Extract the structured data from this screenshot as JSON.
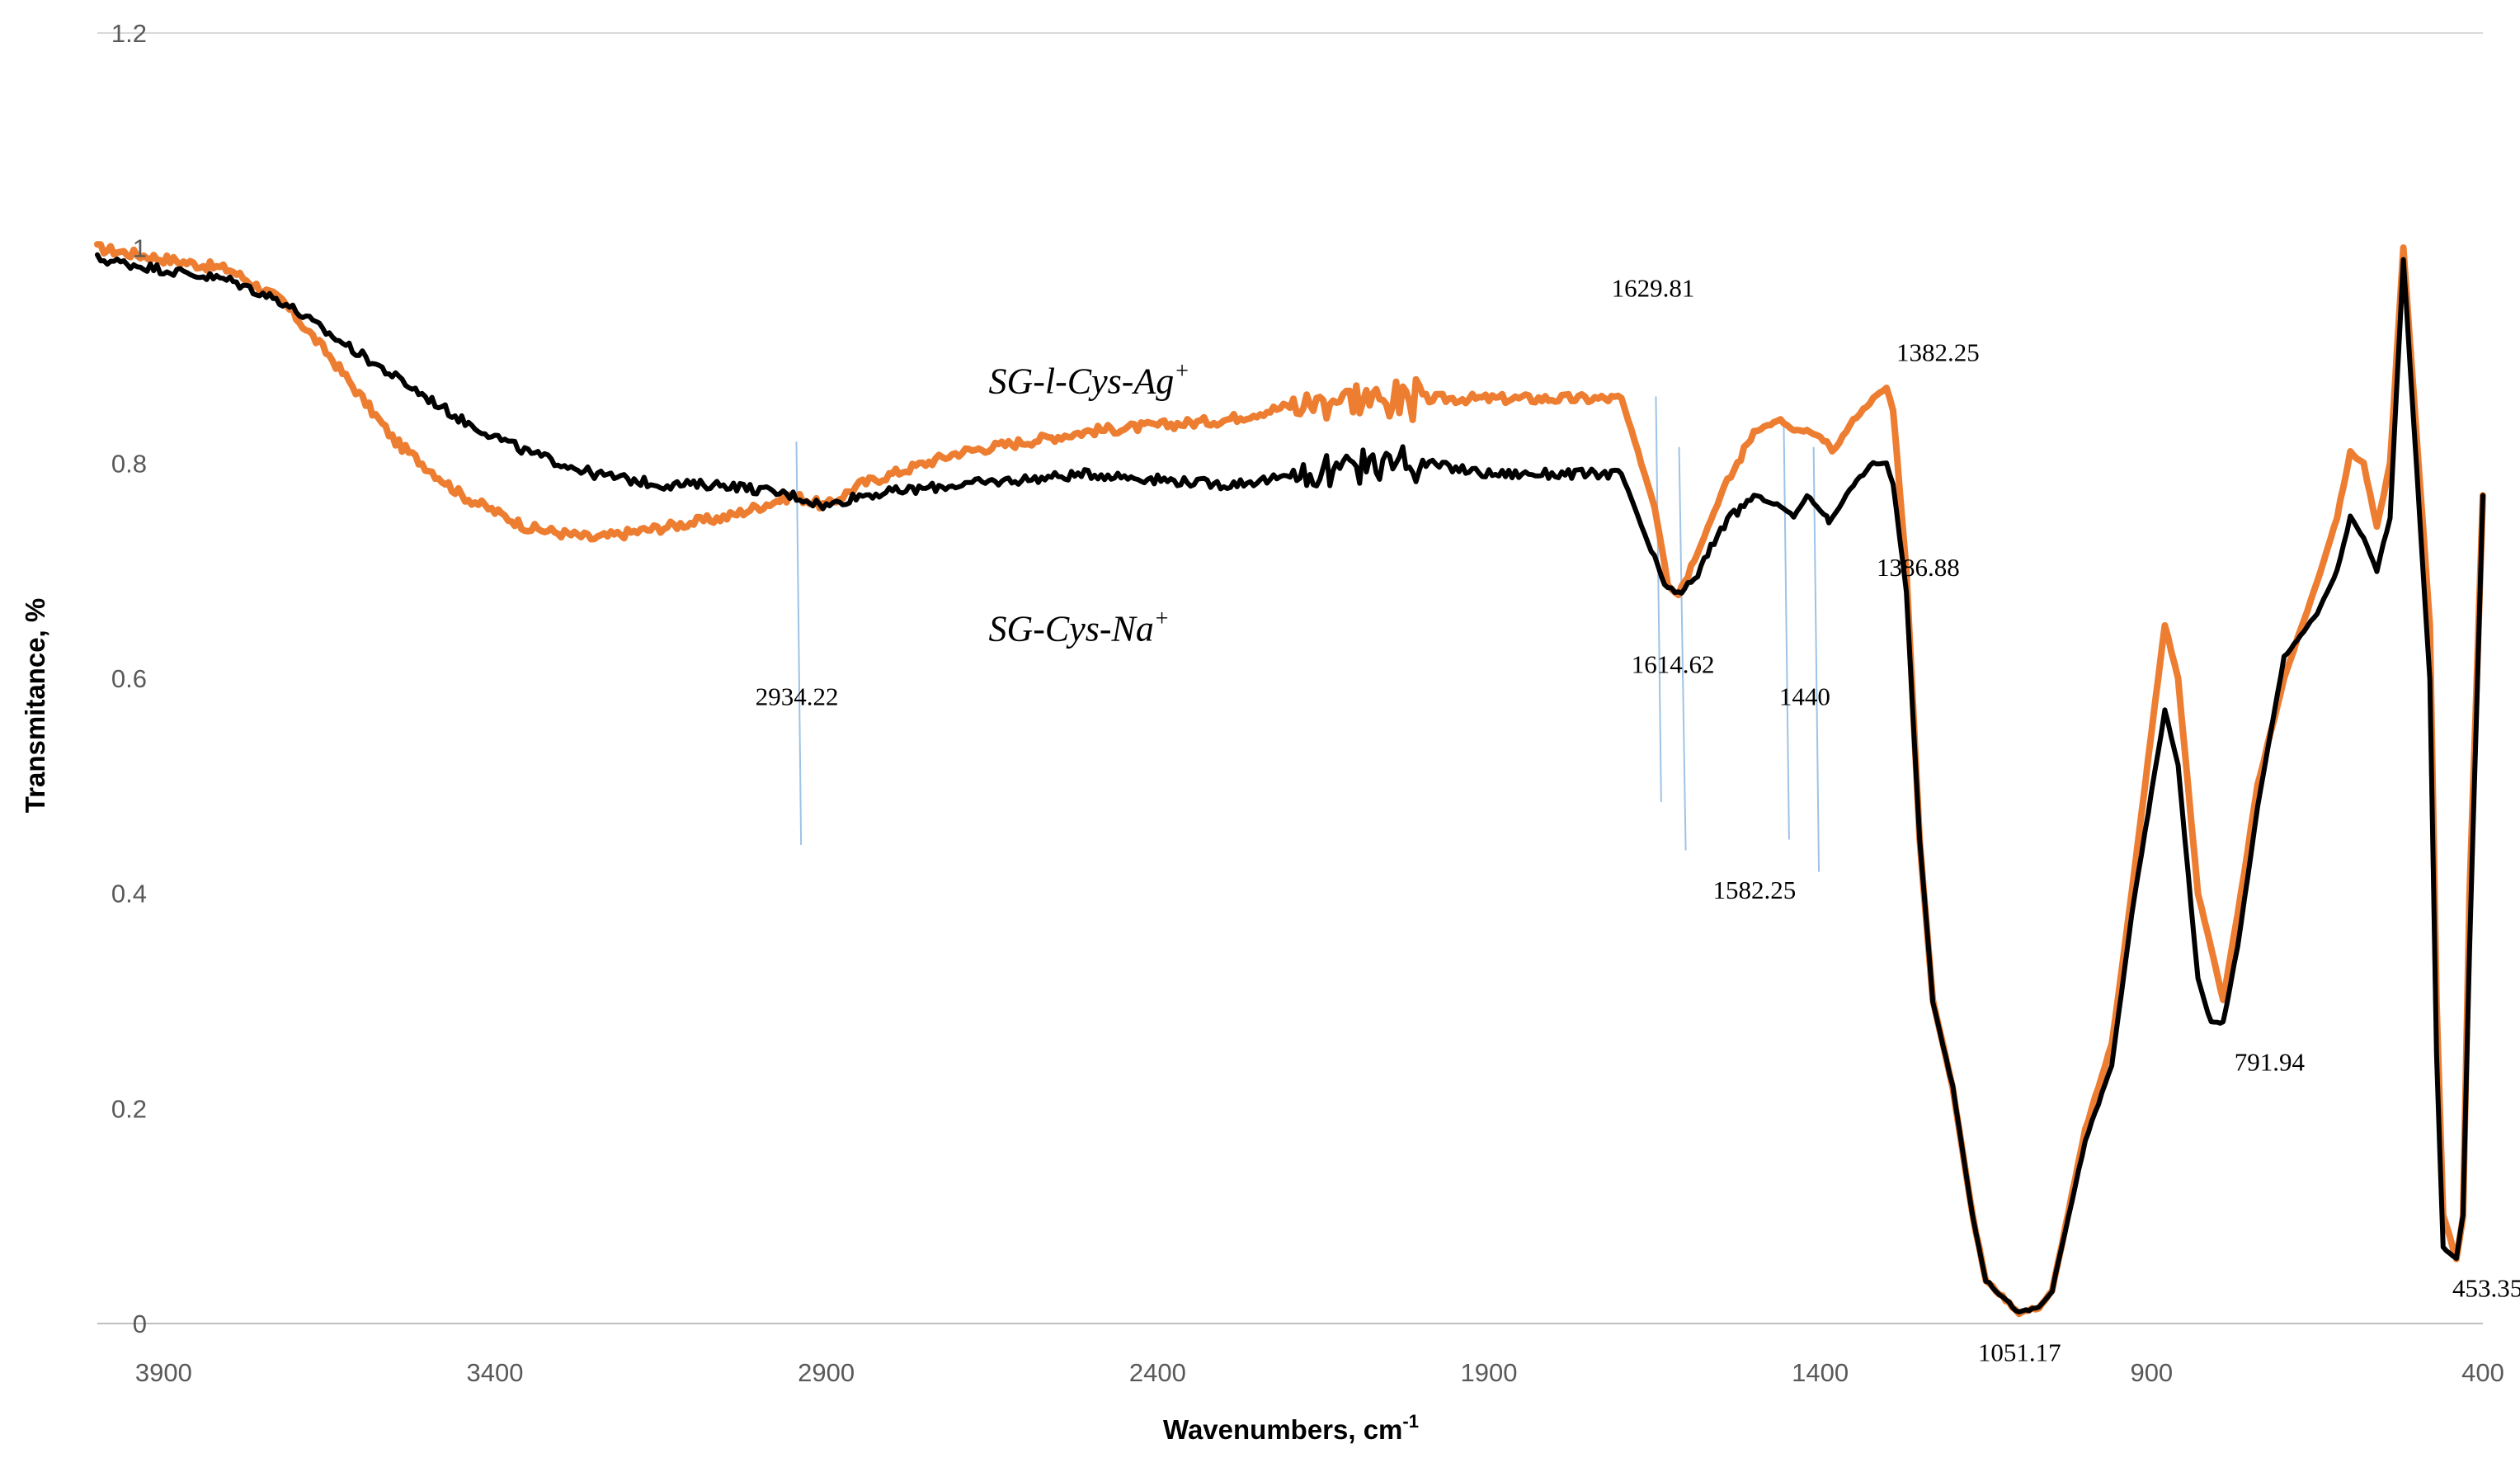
{
  "chart_data": {
    "type": "line",
    "title": "",
    "xlabel": "Wavenumbers, cm",
    "xlabel_superscript": "-1",
    "ylabel": "Transmitance, %",
    "xlim": [
      4000,
      400
    ],
    "ylim": [
      0,
      1.2
    ],
    "x_ticks": [
      "3900",
      "3400",
      "2900",
      "2400",
      "1900",
      "1400",
      "900",
      "400"
    ],
    "y_ticks": [
      "0",
      "0.2",
      "0.4",
      "0.6",
      "0.8",
      "1",
      "1.2"
    ],
    "grid": false,
    "colors": {
      "ag_series": "#ED7D31",
      "na_series": "#000000",
      "marker_lines": "#9DC3E6"
    },
    "series": [
      {
        "name": "SG-l-Cys-Ag",
        "name_sup": "+",
        "color": "#ED7D31",
        "x": [
          4000,
          3900,
          3800,
          3720,
          3650,
          3550,
          3450,
          3350,
          3250,
          3150,
          3050,
          2950,
          2900,
          2850,
          2700,
          2500,
          2300,
          2150,
          2100,
          2000,
          1900,
          1800,
          1700,
          1650,
          1630,
          1614,
          1590,
          1550,
          1500,
          1460,
          1440,
          1420,
          1390,
          1382,
          1350,
          1320,
          1300,
          1290,
          1270,
          1250,
          1230,
          1200,
          1170,
          1150,
          1100,
          1070,
          1050,
          1000,
          960,
          930,
          880,
          860,
          830,
          810,
          792,
          770,
          740,
          700,
          650,
          620,
          600,
          580,
          560,
          540,
          520,
          480,
          470,
          460,
          440,
          430,
          420,
          400
        ],
        "y": [
          1.0,
          0.99,
          0.98,
          0.95,
          0.9,
          0.82,
          0.77,
          0.74,
          0.73,
          0.74,
          0.75,
          0.77,
          0.76,
          0.78,
          0.81,
          0.83,
          0.84,
          0.86,
          0.86,
          0.86,
          0.86,
          0.86,
          0.86,
          0.76,
          0.69,
          0.68,
          0.71,
          0.77,
          0.83,
          0.84,
          0.83,
          0.83,
          0.82,
          0.81,
          0.84,
          0.86,
          0.87,
          0.85,
          0.7,
          0.45,
          0.3,
          0.22,
          0.1,
          0.04,
          0.01,
          0.015,
          0.03,
          0.18,
          0.26,
          0.4,
          0.65,
          0.6,
          0.4,
          0.35,
          0.3,
          0.38,
          0.5,
          0.6,
          0.69,
          0.75,
          0.81,
          0.8,
          0.74,
          0.8,
          1.0,
          0.65,
          0.3,
          0.1,
          0.06,
          0.1,
          0.4,
          0.77
        ]
      },
      {
        "name": "SG-Cys-Na",
        "name_sup": "+",
        "color": "#000000",
        "x": [
          4000,
          3900,
          3800,
          3720,
          3650,
          3550,
          3450,
          3350,
          3250,
          3150,
          3050,
          2950,
          2900,
          2850,
          2700,
          2500,
          2300,
          2150,
          2100,
          2000,
          1900,
          1800,
          1700,
          1650,
          1630,
          1614,
          1590,
          1550,
          1500,
          1460,
          1440,
          1420,
          1390,
          1387,
          1350,
          1320,
          1300,
          1290,
          1270,
          1250,
          1230,
          1200,
          1170,
          1150,
          1100,
          1070,
          1050,
          1000,
          960,
          930,
          880,
          860,
          830,
          810,
          792,
          770,
          740,
          700,
          650,
          620,
          600,
          580,
          560,
          540,
          520,
          480,
          470,
          460,
          440,
          430,
          420,
          400
        ],
        "y": [
          0.99,
          0.98,
          0.97,
          0.95,
          0.92,
          0.88,
          0.84,
          0.81,
          0.79,
          0.78,
          0.78,
          0.77,
          0.76,
          0.77,
          0.78,
          0.79,
          0.78,
          0.79,
          0.8,
          0.8,
          0.79,
          0.79,
          0.79,
          0.71,
          0.68,
          0.68,
          0.69,
          0.74,
          0.77,
          0.76,
          0.75,
          0.77,
          0.75,
          0.745,
          0.78,
          0.8,
          0.8,
          0.78,
          0.68,
          0.45,
          0.3,
          0.22,
          0.1,
          0.04,
          0.01,
          0.015,
          0.03,
          0.17,
          0.24,
          0.38,
          0.57,
          0.52,
          0.32,
          0.28,
          0.28,
          0.35,
          0.48,
          0.62,
          0.66,
          0.7,
          0.75,
          0.73,
          0.7,
          0.75,
          0.99,
          0.6,
          0.25,
          0.07,
          0.06,
          0.1,
          0.35,
          0.77
        ]
      }
    ],
    "series_labels": [
      {
        "text": "SG-l-Cys-Ag",
        "sup": "+",
        "x": 2655,
        "y": 0.865
      },
      {
        "text": "SG-Cys-Na",
        "sup": "+",
        "x": 2655,
        "y": 0.635
      }
    ],
    "marker_lines": [
      {
        "x1": 2945,
        "y1": 0.82,
        "x2": 2938,
        "y2": 0.445
      },
      {
        "x1": 1648,
        "y1": 0.862,
        "x2": 1640,
        "y2": 0.485
      },
      {
        "x1": 1613,
        "y1": 0.815,
        "x2": 1603,
        "y2": 0.44
      },
      {
        "x1": 1455,
        "y1": 0.835,
        "x2": 1447,
        "y2": 0.45
      },
      {
        "x1": 1410,
        "y1": 0.815,
        "x2": 1402,
        "y2": 0.42
      }
    ],
    "annotations": [
      {
        "text": "2934.22",
        "x": 3007,
        "y": 0.575
      },
      {
        "text": "1629.81",
        "x": 1715,
        "y": 0.955
      },
      {
        "text": "1614.62",
        "x": 1685,
        "y": 0.605
      },
      {
        "text": "1440",
        "x": 1462,
        "y": 0.575
      },
      {
        "text": "1582.25",
        "x": 1562,
        "y": 0.395
      },
      {
        "text": "1382.25",
        "x": 1285,
        "y": 0.895
      },
      {
        "text": "1386.88",
        "x": 1315,
        "y": 0.695
      },
      {
        "text": "791.94",
        "x": 775,
        "y": 0.235
      },
      {
        "text": "453.35",
        "x": 446,
        "y": 0.025
      },
      {
        "text": "1051.17",
        "x": 1162,
        "y": -0.035
      }
    ]
  }
}
